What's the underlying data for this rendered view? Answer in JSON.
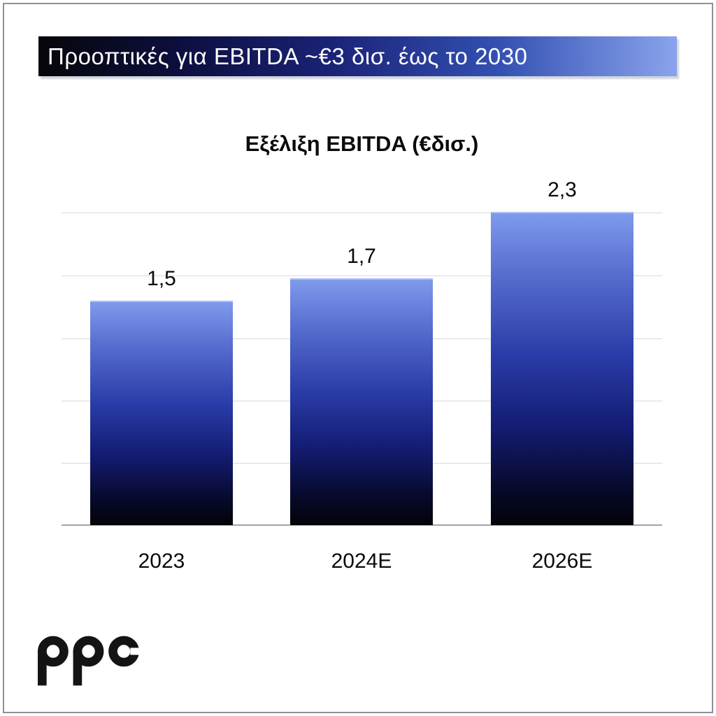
{
  "banner": {
    "title": "Προοπτικές για EBITDA ~€3 δισ. έως το 2030"
  },
  "chart_data": {
    "type": "bar",
    "title": "Εξέλιξη EBITDA (€δισ.)",
    "categories": [
      "2023",
      "2024E",
      "2026E"
    ],
    "values": [
      1.5,
      1.7,
      2.3
    ],
    "value_labels": [
      "1,5",
      "1,7",
      "2,3"
    ],
    "grid": true,
    "gridline_count": 6,
    "legend": false,
    "axis_value_labels_shown": false
  },
  "logo": {
    "text": "ppc"
  },
  "colors": {
    "banner_gradient_left": "#060609",
    "banner_gradient_right": "#8aa3ec",
    "bar_gradient_top": "#7f9aec",
    "bar_gradient_mid": "#2b3da9",
    "bar_gradient_bottom": "#030308",
    "gridline": "#d9d9d9",
    "baseline": "#a5a5a8",
    "text": "#0a0a0a",
    "banner_text": "#ffffff"
  }
}
